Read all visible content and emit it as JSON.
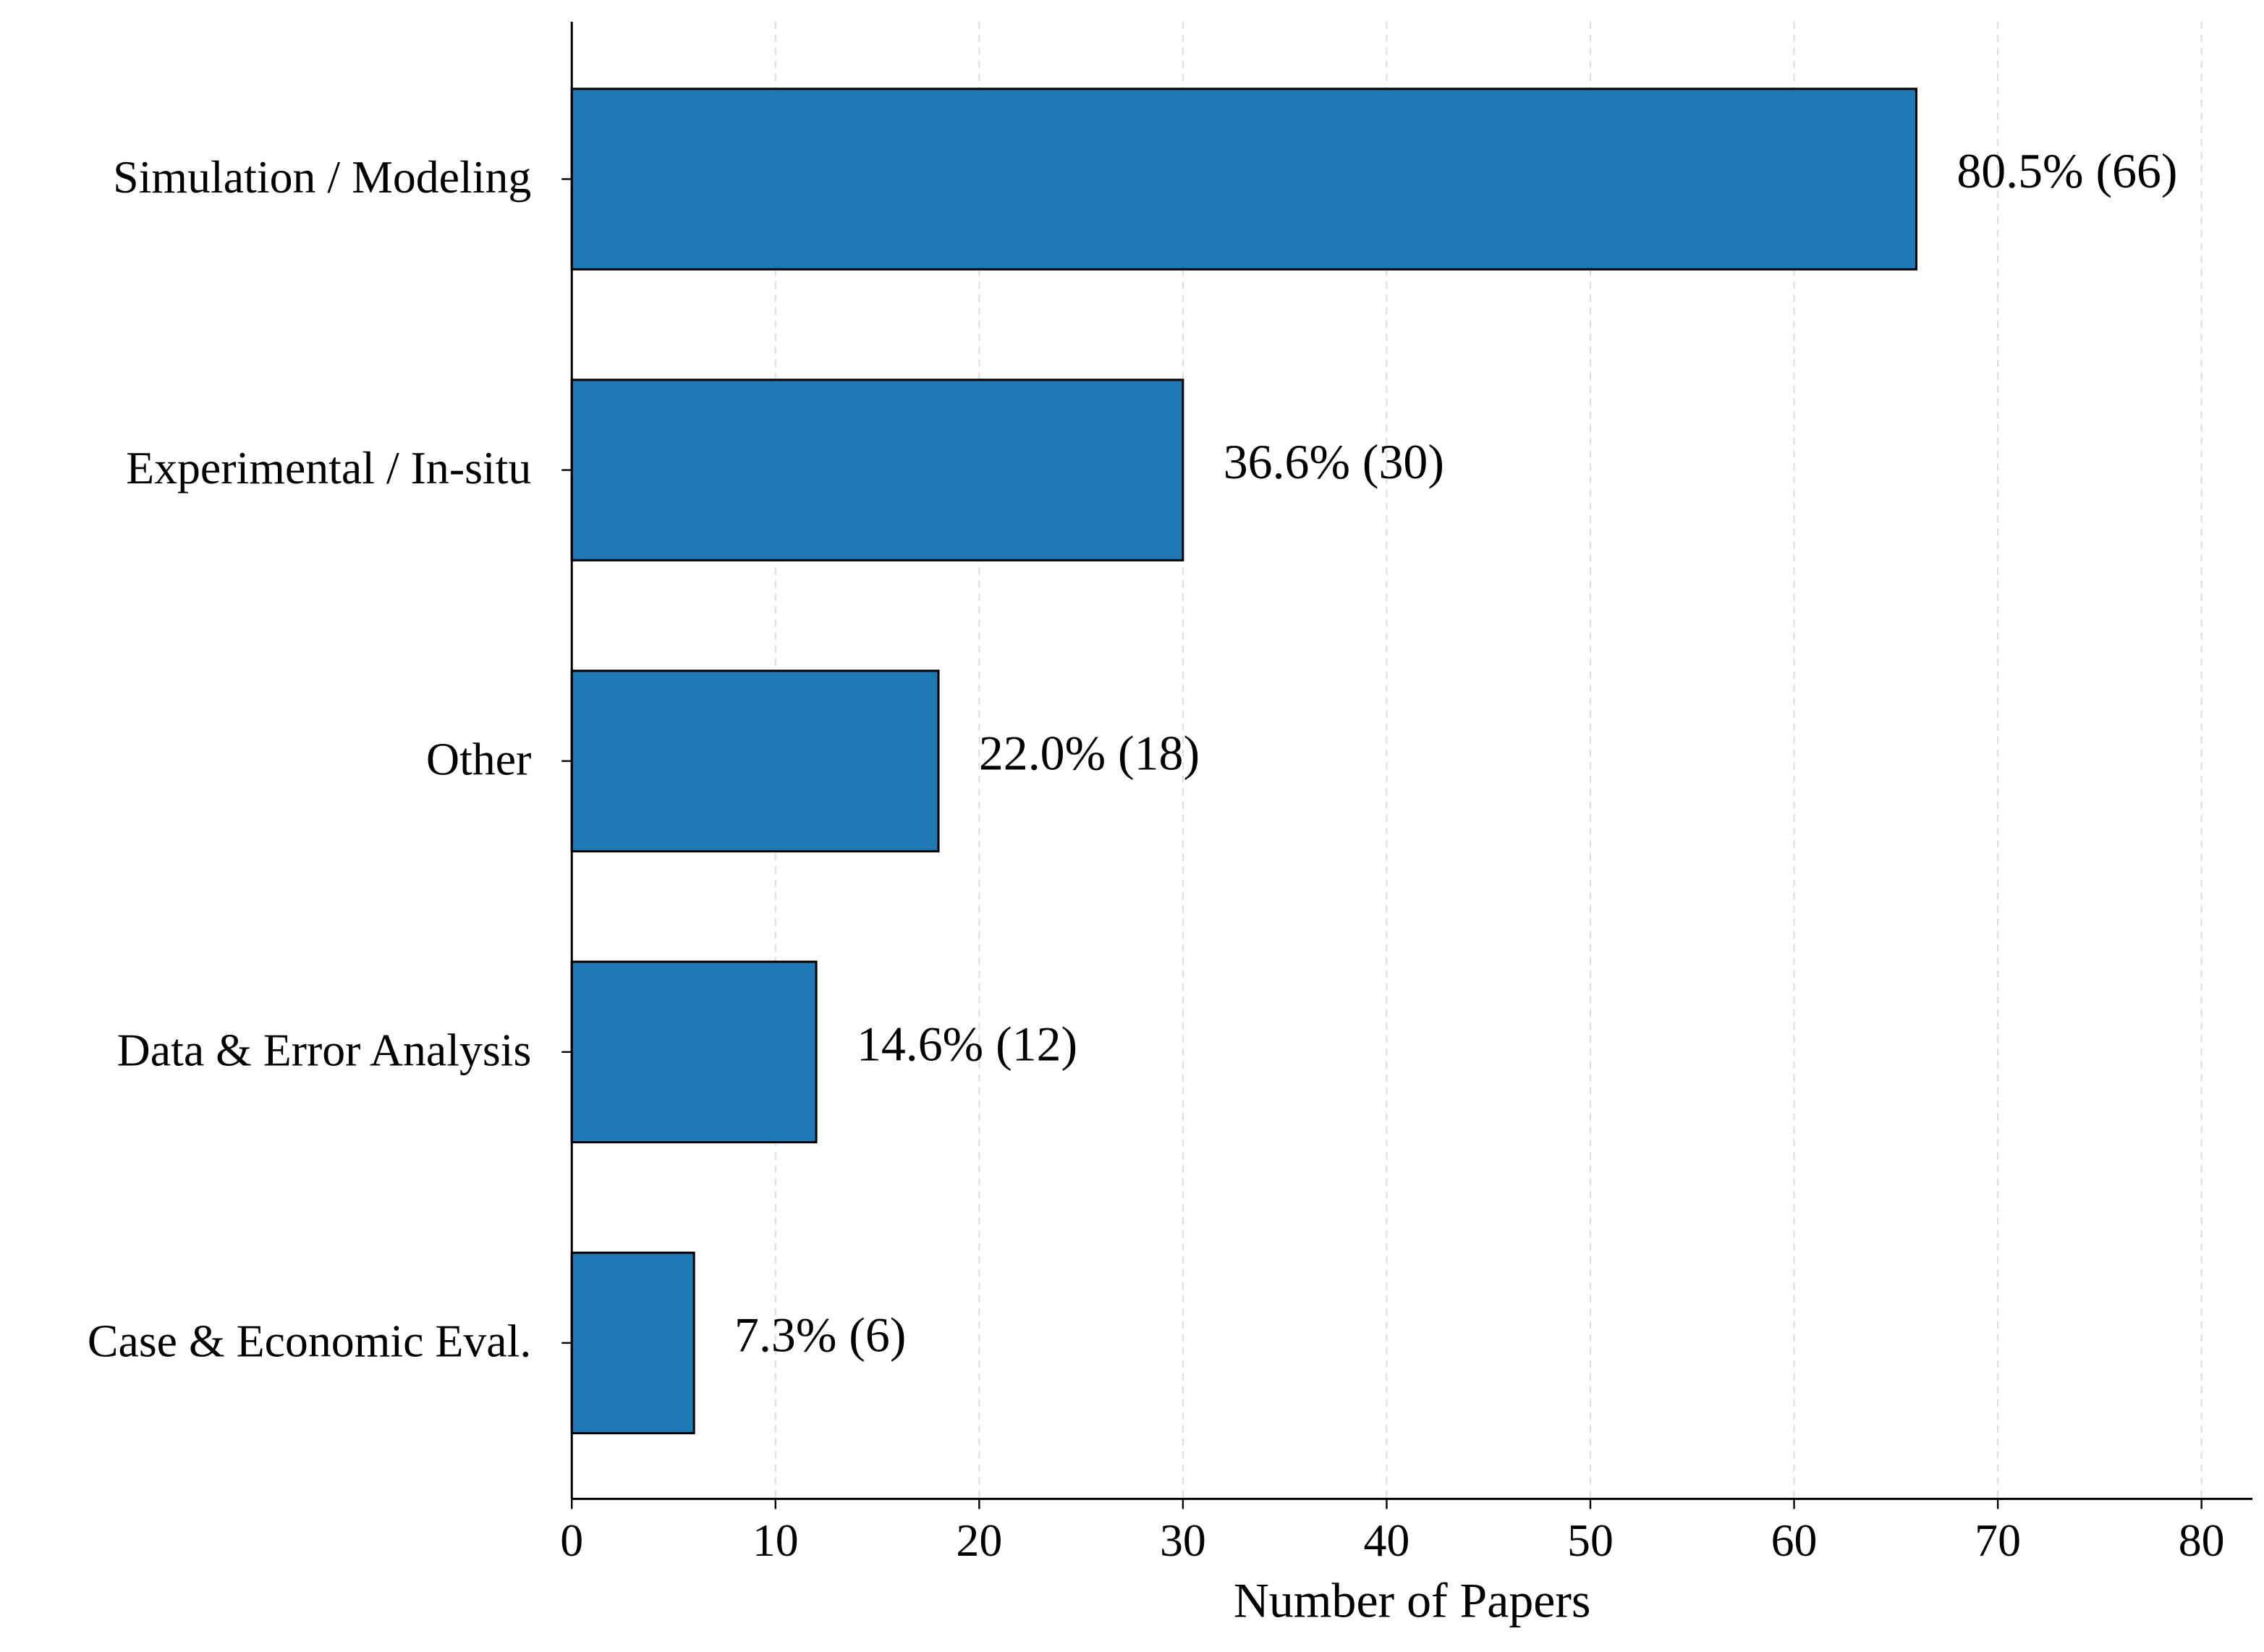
{
  "chart_data": {
    "type": "barh",
    "x_label": "Number of Papers",
    "categories": [
      "Simulation / Modeling",
      "Experimental / In-situ",
      "Other",
      "Data & Error Analysis",
      "Case & Economic Eval."
    ],
    "values": [
      66,
      30,
      18,
      12,
      6
    ],
    "value_labels": [
      "80.5% (66)",
      "36.6% (30)",
      "22.0% (18)",
      "14.6% (12)",
      "7.3% (6)"
    ],
    "color": "#1f77b4",
    "xlim": [
      0,
      82.5
    ],
    "xticks": [
      0,
      10,
      20,
      30,
      40,
      50,
      60,
      70,
      80
    ],
    "grid": true
  }
}
